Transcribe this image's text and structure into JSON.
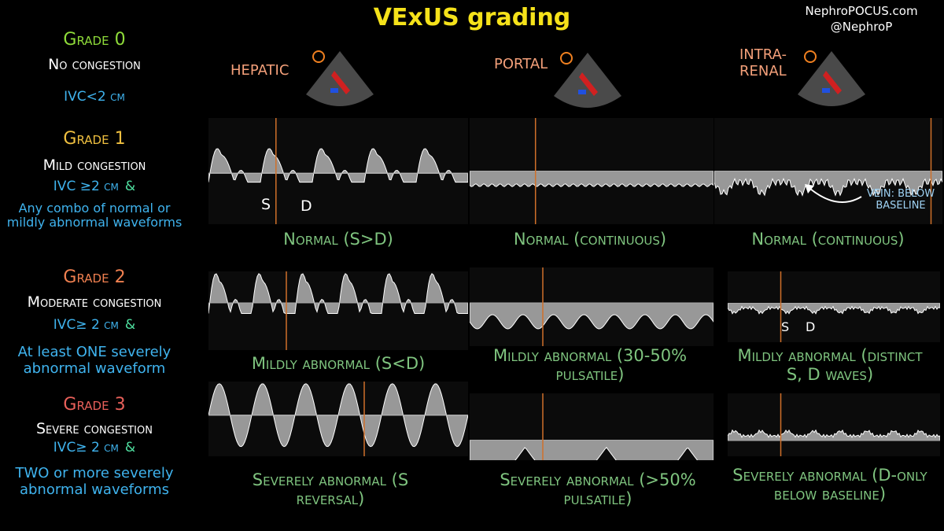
{
  "title": "VExUS grading",
  "credit": [
    "NephroPOCUS.com",
    "@NephroP"
  ],
  "grades": [
    {
      "name": "Grade 0",
      "status": "No congestion",
      "ivc": "IVC<2 cm"
    },
    {
      "name": "Grade 1",
      "status": "Mild congestion",
      "ivc": "IVC ≥2 cm",
      "amp": "&",
      "detail": "Any combo of normal or mildly abnormal waveforms"
    },
    {
      "name": "Grade 2",
      "status": "Moderate congestion",
      "ivc": "IVC≥ 2 cm",
      "amp": "&",
      "detail": "At least ONE severely abnormal waveform"
    },
    {
      "name": "Grade 3",
      "status": "Severe congestion",
      "ivc": "IVC≥ 2 cm",
      "amp": "&",
      "detail": "TWO or more severely abnormal waveforms"
    }
  ],
  "columns": [
    "HEPATIC",
    "PORTAL",
    "INTRA-RENAL"
  ],
  "captions": [
    [
      "Normal (S>D)",
      "Normal (continuous)",
      "Normal (continuous)"
    ],
    [
      "Mildly abnormal (S<D)",
      "Mildly abnormal (30-50% pulsatile)",
      "Mildly abnormal (distinct S, D waves)"
    ],
    [
      "Severely abnormal (S reversal)",
      "Severely abnormal (>50% pulsatile)",
      "Severely abnormal (D-only below baseline)"
    ]
  ],
  "annotations": {
    "s": "S",
    "d": "D",
    "vein": "VEIN: BELOW BASELINE"
  }
}
